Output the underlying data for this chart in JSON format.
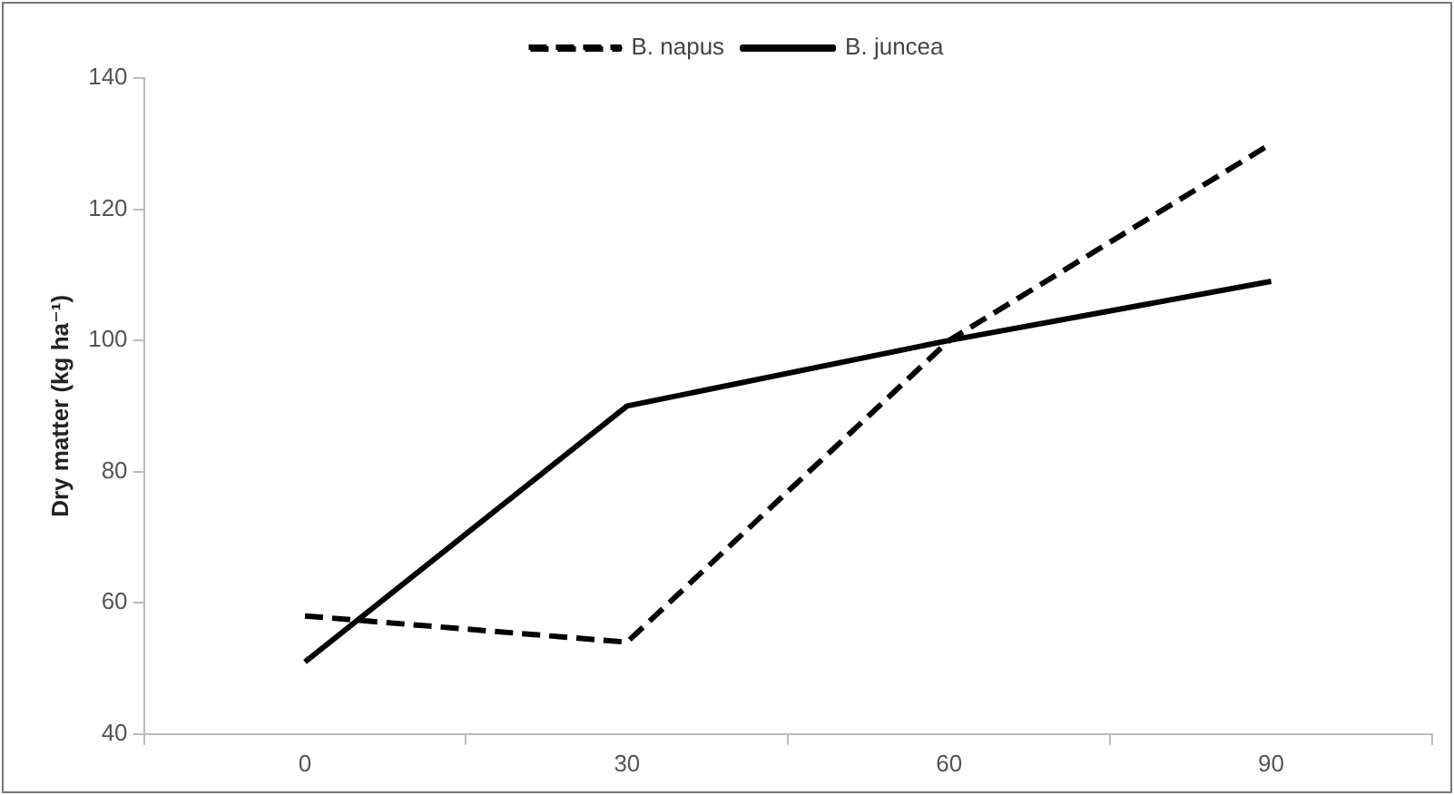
{
  "chart_data": {
    "type": "line",
    "ylabel": "Dry matter (kg ha⁻¹)",
    "categories": [
      "0",
      "30",
      "60",
      "90"
    ],
    "series": [
      {
        "name": "B. napus",
        "color": "#000000",
        "values": [
          58,
          54,
          100,
          130
        ],
        "line_style": "dashed"
      },
      {
        "name": "B. juncea",
        "color": "#000000",
        "values": [
          51,
          90,
          100,
          109
        ],
        "line_style": "solid"
      }
    ],
    "ylim": [
      40,
      140
    ],
    "yticks": [
      40,
      60,
      80,
      100,
      120,
      140
    ],
    "grid": false,
    "legend": "top",
    "marker": "none"
  }
}
